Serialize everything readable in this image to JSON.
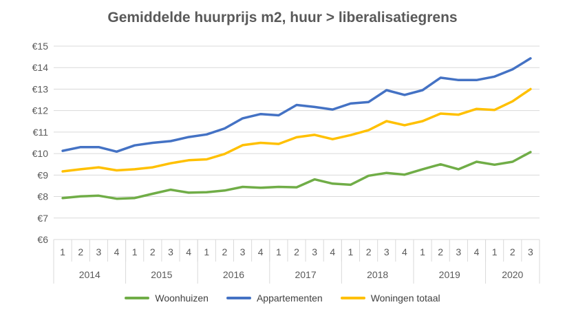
{
  "chart_data": {
    "type": "line",
    "title": "Gemiddelde huurprijs m2, huur > liberalisatiegrens",
    "xlabel": "",
    "ylabel": "",
    "ylim": [
      6,
      15
    ],
    "y_ticks": [
      "€6",
      "€7",
      "€8",
      "€9",
      "€10",
      "€11",
      "€12",
      "€13",
      "€14",
      "€15"
    ],
    "quarter_labels": [
      "1",
      "2",
      "3",
      "4",
      "1",
      "2",
      "3",
      "4",
      "1",
      "2",
      "3",
      "4",
      "1",
      "2",
      "3",
      "4",
      "1",
      "2",
      "3",
      "4",
      "1",
      "2",
      "3",
      "4",
      "1",
      "2",
      "3"
    ],
    "years": [
      {
        "label": "2014",
        "quarters": 4
      },
      {
        "label": "2015",
        "quarters": 4
      },
      {
        "label": "2016",
        "quarters": 4
      },
      {
        "label": "2017",
        "quarters": 4
      },
      {
        "label": "2018",
        "quarters": 4
      },
      {
        "label": "2019",
        "quarters": 4
      },
      {
        "label": "2020",
        "quarters": 3
      }
    ],
    "grid": true,
    "legend_position": "bottom",
    "series": [
      {
        "name": "Woonhuizen",
        "color": "#70AD47",
        "values": [
          7.93,
          8.01,
          8.04,
          7.9,
          7.93,
          8.13,
          8.32,
          8.18,
          8.2,
          8.28,
          8.45,
          8.41,
          8.45,
          8.43,
          8.8,
          8.6,
          8.55,
          8.97,
          9.1,
          9.02,
          9.27,
          9.5,
          9.27,
          9.62,
          9.48,
          9.62,
          10.07
        ]
      },
      {
        "name": "Appartementen",
        "color": "#4472C4",
        "values": [
          10.13,
          10.3,
          10.3,
          10.09,
          10.38,
          10.5,
          10.58,
          10.77,
          10.89,
          11.17,
          11.64,
          11.84,
          11.78,
          12.26,
          12.17,
          12.05,
          12.33,
          12.4,
          12.95,
          12.73,
          12.95,
          13.53,
          13.42,
          13.42,
          13.58,
          13.92,
          14.43
        ]
      },
      {
        "name": "Woningen totaal",
        "color": "#FFC000",
        "values": [
          9.17,
          9.27,
          9.36,
          9.22,
          9.27,
          9.36,
          9.55,
          9.69,
          9.73,
          9.98,
          10.39,
          10.5,
          10.45,
          10.76,
          10.87,
          10.67,
          10.86,
          11.09,
          11.51,
          11.32,
          11.51,
          11.86,
          11.81,
          12.08,
          12.03,
          12.43,
          13.0
        ]
      }
    ]
  }
}
